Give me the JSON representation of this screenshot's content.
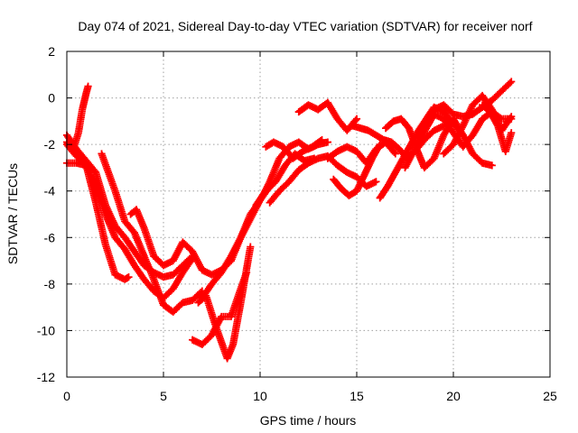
{
  "chart_data": {
    "type": "scatter",
    "title": "Day 074 of 2021, Sidereal Day-to-day VTEC variation (SDTVAR) for receiver norf",
    "xlabel": "GPS time / hours",
    "ylabel": "SDTVAR / TECUs",
    "xlim": [
      0,
      25
    ],
    "ylim": [
      -12,
      2
    ],
    "xticks": [
      0,
      5,
      10,
      15,
      20,
      25
    ],
    "yticks": [
      -12,
      -10,
      -8,
      -6,
      -4,
      -2,
      0,
      2
    ],
    "grid": true,
    "legend": "none",
    "marker": "plus",
    "color": "#ff0000",
    "series": [
      {
        "x": [
          0.0,
          0.3,
          0.6,
          0.8,
          1.0,
          1.1
        ],
        "y": [
          -1.9,
          -2.3,
          -1.5,
          -0.5,
          0.2,
          0.5
        ]
      },
      {
        "x": [
          0.0,
          0.5,
          1.0,
          1.5,
          2.0,
          2.5,
          3.0,
          3.5,
          4.0,
          4.5,
          5.0,
          5.5,
          6.0,
          6.5
        ],
        "y": [
          -1.6,
          -2.2,
          -2.7,
          -3.2,
          -4.6,
          -5.5,
          -6.0,
          -6.6,
          -7.2,
          -7.5,
          -7.7,
          -7.6,
          -7.2,
          -6.8
        ]
      },
      {
        "x": [
          0.0,
          0.5,
          1.0,
          1.5,
          2.0,
          2.5,
          3.0,
          3.2
        ],
        "y": [
          -2.8,
          -2.8,
          -2.9,
          -4.5,
          -6.3,
          -7.6,
          -7.8,
          -7.7
        ]
      },
      {
        "x": [
          0.0,
          0.5,
          1.0,
          1.5,
          2.0,
          2.5,
          3.0,
          3.5,
          4.0,
          4.5,
          5.0,
          5.5,
          6.0,
          6.5
        ],
        "y": [
          -2.0,
          -2.5,
          -2.9,
          -3.8,
          -5.0,
          -6.0,
          -6.5,
          -7.2,
          -7.8,
          -8.3,
          -8.6,
          -8.2,
          -7.5,
          -6.9
        ]
      },
      {
        "x": [
          1.8,
          2.5,
          3.0,
          3.5,
          4.0,
          4.5,
          5.0,
          5.5,
          6.0,
          6.5,
          7.0
        ],
        "y": [
          -2.4,
          -4.0,
          -5.3,
          -5.8,
          -6.8,
          -7.8,
          -8.9,
          -9.2,
          -8.8,
          -8.7,
          -8.3
        ]
      },
      {
        "x": [
          3.3,
          3.6,
          4.0,
          4.5,
          5.0,
          5.5,
          6.0,
          6.5,
          7.0,
          7.5,
          8.0,
          8.5,
          9.0,
          9.5,
          10.0,
          10.5
        ],
        "y": [
          -5.0,
          -4.8,
          -5.6,
          -6.8,
          -7.2,
          -7.0,
          -6.2,
          -6.6,
          -7.4,
          -7.6,
          -7.4,
          -7.0,
          -6.0,
          -5.0,
          -4.4,
          -3.8
        ]
      },
      {
        "x": [
          6.5,
          7.0,
          7.5,
          8.0,
          8.5,
          9.0,
          9.3
        ],
        "y": [
          -10.4,
          -10.6,
          -10.2,
          -9.4,
          -9.4,
          -8.2,
          -7.5
        ]
      },
      {
        "x": [
          6.8,
          7.2,
          7.7,
          8.0,
          8.3,
          8.6,
          9.0,
          9.5
        ],
        "y": [
          -8.8,
          -8.5,
          -9.8,
          -10.5,
          -11.2,
          -10.6,
          -8.8,
          -6.4
        ]
      },
      {
        "x": [
          7.0,
          7.5,
          8.0,
          8.5,
          9.0,
          9.5,
          10.0
        ],
        "y": [
          -8.6,
          -8.0,
          -7.5,
          -6.8,
          -6.0,
          -5.2,
          -4.4
        ]
      },
      {
        "x": [
          9.8,
          10.2,
          10.5,
          11.0,
          11.5,
          12.0,
          12.5,
          13.0,
          13.5
        ],
        "y": [
          -4.6,
          -4.1,
          -3.6,
          -2.6,
          -2.1,
          -1.9,
          -2.2,
          -2.0,
          -1.9
        ]
      },
      {
        "x": [
          10.3,
          10.7,
          11.2,
          11.7,
          12.2,
          12.7,
          13.2
        ],
        "y": [
          -2.1,
          -1.9,
          -2.1,
          -2.6,
          -2.3,
          -2.1,
          -1.8
        ]
      },
      {
        "x": [
          10.3,
          10.8,
          11.3,
          11.8,
          12.3,
          12.8
        ],
        "y": [
          -4.0,
          -3.6,
          -2.9,
          -2.4,
          -2.7,
          -2.6
        ]
      },
      {
        "x": [
          10.5,
          11.0,
          11.5,
          12.0,
          12.5,
          13.0,
          13.5,
          14.0,
          14.5,
          15.0,
          15.5,
          16.0
        ],
        "y": [
          -4.5,
          -4.0,
          -3.6,
          -3.1,
          -2.8,
          -2.6,
          -2.5,
          -2.9,
          -3.2,
          -3.4,
          -3.8,
          -3.6
        ]
      },
      {
        "x": [
          12.0,
          12.5,
          13.0,
          13.5,
          14.0,
          14.5,
          15.0
        ],
        "y": [
          -0.6,
          -0.3,
          -0.5,
          -0.2,
          -0.9,
          -1.4,
          -0.9
        ]
      },
      {
        "x": [
          13.5,
          14.0,
          14.5,
          15.0,
          15.5,
          16.0,
          16.5,
          17.0
        ],
        "y": [
          -2.6,
          -2.3,
          -2.1,
          -2.3,
          -2.8,
          -2.2,
          -1.9,
          -2.4
        ]
      },
      {
        "x": [
          13.8,
          14.2,
          14.6,
          15.0,
          15.4,
          15.8,
          16.2
        ],
        "y": [
          -3.5,
          -3.9,
          -4.2,
          -4.0,
          -3.3,
          -2.6,
          -2.0
        ]
      },
      {
        "x": [
          14.8,
          15.2,
          15.6,
          16.0,
          16.4,
          16.8,
          17.2,
          17.6,
          18.0,
          18.5,
          19.0,
          19.5,
          20.0
        ],
        "y": [
          -1.2,
          -1.3,
          -1.4,
          -1.6,
          -1.8,
          -1.9,
          -2.2,
          -2.6,
          -2.3,
          -1.8,
          -1.4,
          -1.2,
          -1.0
        ]
      },
      {
        "x": [
          16.2,
          16.6,
          17.0,
          17.4,
          17.8,
          18.2,
          18.6,
          19.0,
          19.5,
          20.0,
          20.5
        ],
        "y": [
          -4.3,
          -3.8,
          -3.2,
          -2.6,
          -2.0,
          -1.4,
          -0.9,
          -0.4,
          -0.6,
          -1.1,
          -1.6
        ]
      },
      {
        "x": [
          16.5,
          16.9,
          17.3,
          17.7,
          18.1,
          18.5,
          19.0,
          19.5,
          20.0,
          20.5,
          21.0,
          21.5,
          22.0
        ],
        "y": [
          -1.3,
          -1.0,
          -0.9,
          -1.3,
          -2.2,
          -3.0,
          -2.6,
          -1.6,
          -0.9,
          -1.6,
          -2.4,
          -2.8,
          -2.9
        ]
      },
      {
        "x": [
          17.5,
          18.0,
          18.5,
          19.0,
          19.5,
          20.0,
          20.5,
          21.0,
          21.5,
          22.0,
          22.5,
          23.0
        ],
        "y": [
          -3.0,
          -2.2,
          -1.2,
          -0.5,
          -0.3,
          -0.7,
          -0.8,
          -0.7,
          -0.4,
          -0.1,
          0.3,
          0.7
        ]
      },
      {
        "x": [
          18.2,
          18.6,
          19.0,
          19.5,
          20.0,
          20.5,
          21.0,
          21.5,
          22.0,
          22.5,
          23.0
        ],
        "y": [
          -2.0,
          -1.3,
          -0.7,
          -0.9,
          -1.5,
          -2.1,
          -1.6,
          -0.9,
          -0.6,
          -0.9,
          -0.9
        ]
      },
      {
        "x": [
          19.5,
          20.0,
          20.5,
          21.0,
          21.5,
          22.0,
          22.5,
          23.0
        ],
        "y": [
          -2.4,
          -2.0,
          -1.2,
          -0.3,
          0.1,
          -0.5,
          -1.4,
          -0.8
        ]
      },
      {
        "x": [
          21.5,
          21.9,
          22.3,
          22.7,
          23.0
        ],
        "y": [
          -0.3,
          -0.6,
          -1.2,
          -2.3,
          -1.5
        ]
      }
    ]
  }
}
